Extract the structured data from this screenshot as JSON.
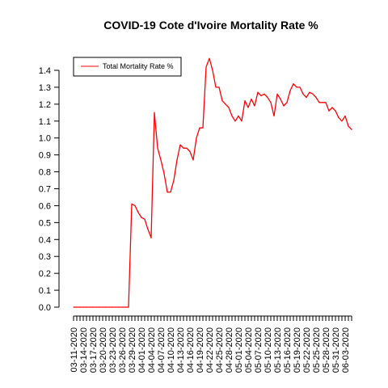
{
  "chart_data": {
    "type": "line",
    "title": "COVID-19 Cote d'Ivoire Mortality Rate %",
    "xlabel": "",
    "ylabel": "",
    "ylim": [
      0,
      1.4
    ],
    "yticks": [
      "0.0",
      "0.1",
      "0.2",
      "0.3",
      "0.4",
      "0.5",
      "0.6",
      "0.7",
      "0.8",
      "0.9",
      "1.0",
      "1.1",
      "1.2",
      "1.3",
      "1.4"
    ],
    "x_tick_labels": [
      "03-11-2020",
      "03-14-2020",
      "03-17-2020",
      "03-20-2020",
      "03-23-2020",
      "03-26-2020",
      "03-29-2020",
      "04-01-2020",
      "04-04-2020",
      "04-07-2020",
      "04-10-2020",
      "04-13-2020",
      "04-16-2020",
      "04-19-2020",
      "04-22-2020",
      "04-25-2020",
      "04-28-2020",
      "05-01-2020",
      "05-04-2020",
      "05-07-2020",
      "05-10-2020",
      "05-13-2020",
      "05-16-2020",
      "05-19-2020",
      "05-22-2020",
      "05-25-2020",
      "05-28-2020",
      "05-31-2020",
      "06-03-2020"
    ],
    "legend": {
      "position": "top-left",
      "entries": [
        "Total Mortality Rate %"
      ]
    },
    "grid": false,
    "series": [
      {
        "name": "Total Mortality Rate %",
        "color": "#ff0000",
        "x_start": "03-11-2020",
        "values": [
          0,
          0,
          0,
          0,
          0,
          0,
          0,
          0,
          0,
          0,
          0,
          0,
          0,
          0,
          0,
          0,
          0,
          0,
          0.61,
          0.6,
          0.56,
          0.53,
          0.52,
          0.46,
          0.41,
          1.15,
          0.94,
          0.87,
          0.79,
          0.68,
          0.68,
          0.75,
          0.87,
          0.96,
          0.94,
          0.94,
          0.92,
          0.87,
          1.0,
          1.06,
          1.06,
          1.42,
          1.47,
          1.4,
          1.3,
          1.3,
          1.22,
          1.2,
          1.18,
          1.13,
          1.1,
          1.13,
          1.1,
          1.22,
          1.18,
          1.23,
          1.19,
          1.27,
          1.25,
          1.26,
          1.24,
          1.21,
          1.13,
          1.26,
          1.23,
          1.19,
          1.21,
          1.28,
          1.32,
          1.3,
          1.3,
          1.26,
          1.24,
          1.27,
          1.26,
          1.24,
          1.21,
          1.21,
          1.21,
          1.16,
          1.18,
          1.16,
          1.12,
          1.1,
          1.13,
          1.07,
          1.05
        ]
      }
    ]
  }
}
